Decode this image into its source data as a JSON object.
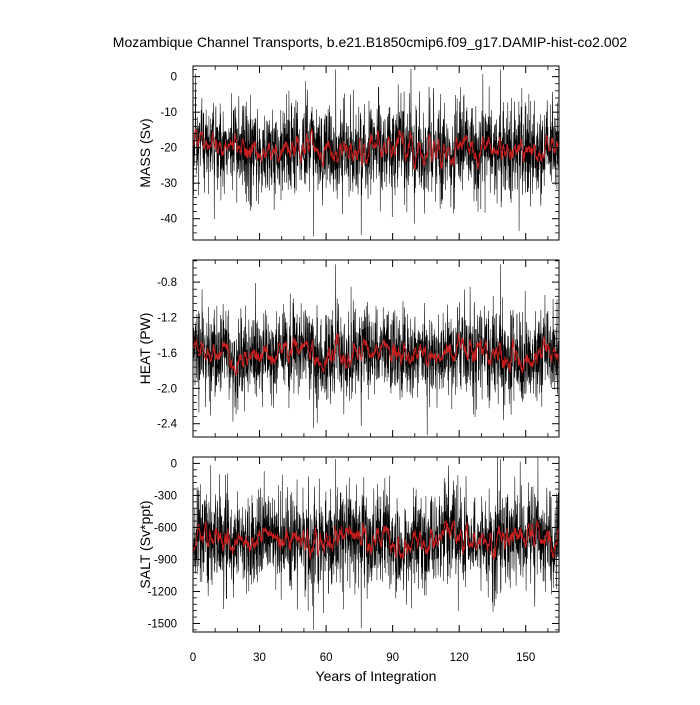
{
  "title": "Mozambique Channel Transports, b.e21.B1850cmip6.f09_g17.DAMIP-hist-co2.002",
  "colors": {
    "raw_series": "#000000",
    "smoothed_series": "#d62020",
    "background": "#ffffff"
  },
  "chart_data": [
    {
      "type": "line",
      "title": "Mozambique Channel Transports, b.e21.B1850cmip6.f09_g17.DAMIP-hist-co2.002",
      "xlabel": "",
      "ylabel": "MASS (Sv)",
      "xlim": [
        0,
        165
      ],
      "ylim": [
        -46,
        3
      ],
      "yticks": [
        0,
        -10,
        -20,
        -30,
        -40
      ],
      "ytick_labels": [
        "0",
        "-10",
        "-20",
        "-30",
        "-40"
      ],
      "xticks": [
        0,
        30,
        60,
        90,
        120,
        150
      ],
      "grid": false,
      "series": [
        {
          "values_rule": "monthly values oscillating about the mean",
          "mean_approx": -20.5,
          "typical_range": [
            -35,
            -8
          ],
          "extremes": [
            -45,
            2
          ],
          "color": "#000000"
        },
        {
          "values_rule": "running mean",
          "mean_approx": -20.5,
          "typical_range": [
            -24,
            -17
          ],
          "color": "#d62020"
        }
      ]
    },
    {
      "type": "line",
      "xlabel": "",
      "ylabel": "HEAT (PW)",
      "xlim": [
        0,
        165
      ],
      "ylim": [
        -2.55,
        -0.55
      ],
      "yticks": [
        -0.8,
        -1.2,
        -1.6,
        -2.0,
        -2.4
      ],
      "ytick_labels": [
        "-0.8",
        "-1.2",
        "-1.6",
        "-2.0",
        "-2.4"
      ],
      "xticks": [
        0,
        30,
        60,
        90,
        120,
        150
      ],
      "grid": false,
      "series": [
        {
          "values_rule": "monthly values oscillating about the mean",
          "mean_approx": -1.62,
          "typical_range": [
            -2.1,
            -1.1
          ],
          "extremes": [
            -2.45,
            -0.6
          ],
          "color": "#000000"
        },
        {
          "values_rule": "running mean",
          "mean_approx": -1.62,
          "typical_range": [
            -1.78,
            -1.45
          ],
          "color": "#d62020"
        }
      ]
    },
    {
      "type": "line",
      "xlabel": "Years of Integration",
      "ylabel": "SALT (Sv*ppt)",
      "xlim": [
        0,
        165
      ],
      "ylim": [
        -1580,
        60
      ],
      "yticks": [
        0,
        -300,
        -600,
        -900,
        -1200,
        -1500
      ],
      "ytick_labels": [
        "0",
        "-300",
        "-600",
        "-900",
        "-1200",
        "-1500"
      ],
      "xticks": [
        0,
        30,
        60,
        90,
        120,
        150
      ],
      "xtick_labels": [
        "0",
        "30",
        "60",
        "90",
        "120",
        "150"
      ],
      "grid": false,
      "series": [
        {
          "values_rule": "monthly values oscillating about the mean",
          "mean_approx": -720,
          "typical_range": [
            -1200,
            -300
          ],
          "extremes": [
            -1560,
            40
          ],
          "color": "#000000"
        },
        {
          "values_rule": "running mean",
          "mean_approx": -720,
          "typical_range": [
            -820,
            -600
          ],
          "color": "#d62020"
        }
      ]
    }
  ]
}
